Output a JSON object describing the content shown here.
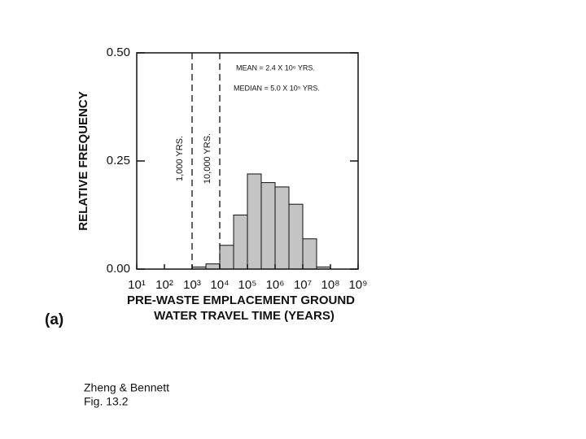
{
  "chart_data": {
    "type": "histogram",
    "ylabel": "RELATIVE FREQUENCY",
    "xlabel": [
      "PRE-WASTE EMPLACEMENT GROUND",
      "WATER TRAVEL TIME (YEARS)"
    ],
    "xscale": "log",
    "bins": [
      1000,
      3162.28,
      10000,
      31622.8,
      100000,
      316228,
      1000000,
      3162280,
      10000000,
      31622800,
      100000000
    ],
    "values": [
      0.005,
      0.012,
      0.055,
      0.125,
      0.22,
      0.2,
      0.19,
      0.15,
      0.07,
      0.005
    ],
    "color": "#c4c4c4",
    "xlim": [
      10,
      1000000000
    ],
    "xticks": [
      {
        "value": 10,
        "label": "10¹"
      },
      {
        "value": 100,
        "label": "10²"
      },
      {
        "value": 1000,
        "label": "10³"
      },
      {
        "value": 10000,
        "label": "10⁴"
      },
      {
        "value": 100000,
        "label": "10⁵"
      },
      {
        "value": 1000000,
        "label": "10⁶"
      },
      {
        "value": 10000000,
        "label": "10⁷"
      },
      {
        "value": 100000000,
        "label": "10⁸"
      },
      {
        "value": 1000000000,
        "label": "10⁹"
      }
    ],
    "ylim": [
      0,
      0.5
    ],
    "yticks": [
      {
        "value": 0,
        "label": "0.00"
      },
      {
        "value": 0.25,
        "label": "0.25"
      },
      {
        "value": 0.5,
        "label": "0.50"
      }
    ],
    "vlines": [
      {
        "x": 1000,
        "label": "1,000 YRS."
      },
      {
        "x": 10000,
        "label": "10,000 YRS."
      }
    ],
    "annotations": [
      "MEAN = 2.4 X 10⁶ YRS.",
      "MEDIAN = 5.0 X 10⁵ YRS."
    ],
    "panel_label": "(a)"
  },
  "caption": [
    "Zheng & Bennett",
    "Fig. 13.2"
  ]
}
